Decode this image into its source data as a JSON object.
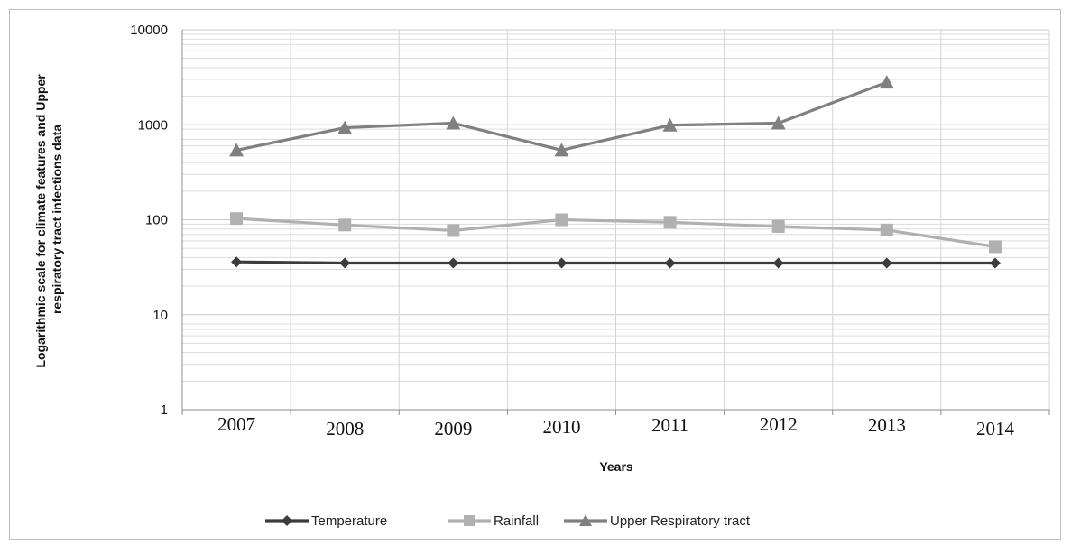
{
  "chart_data": {
    "type": "line",
    "categories": [
      "2007",
      "2008",
      "2009",
      "2010",
      "2011",
      "2012",
      "2013",
      "2014"
    ],
    "series": [
      {
        "name": "Temperature",
        "values": [
          36,
          35,
          35,
          35,
          35,
          35,
          35,
          35
        ],
        "color": "#3c3c3c",
        "marker": "diamond"
      },
      {
        "name": "Rainfall",
        "values": [
          103,
          88,
          77,
          100,
          94,
          85,
          78,
          52
        ],
        "color": "#b0b0b0",
        "marker": "square"
      },
      {
        "name": "Upper Respiratory tract",
        "values": [
          540,
          930,
          1040,
          540,
          990,
          1040,
          2800,
          null
        ],
        "color": "#808080",
        "marker": "triangle"
      }
    ],
    "xlabel": "Years",
    "ylabel_lines": [
      "Logarithmic scale for climate features and Upper",
      "respiratory tract infections data"
    ],
    "yscale": "log",
    "ylim": [
      1,
      10000
    ],
    "yticks": [
      "1",
      "10",
      "100",
      "1000",
      "10000"
    ],
    "grid": true,
    "legend_position": "bottom"
  }
}
